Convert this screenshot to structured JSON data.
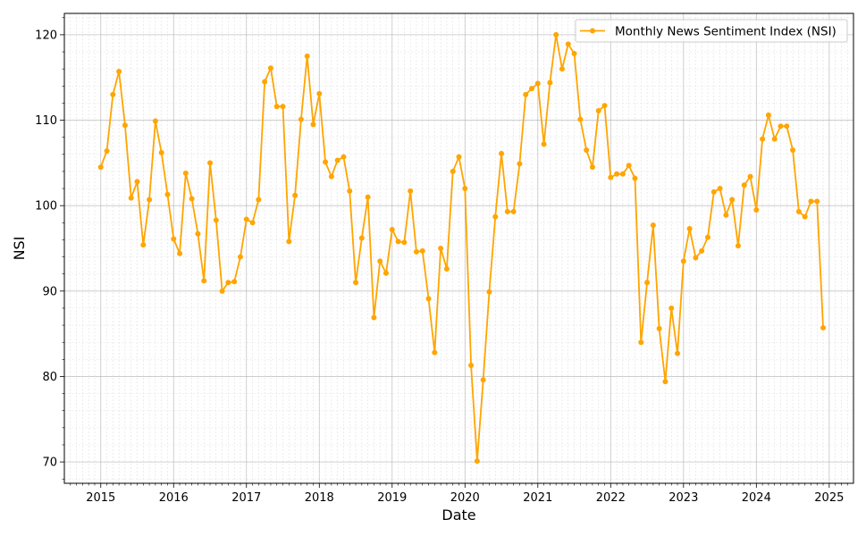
{
  "chart_data": {
    "type": "line",
    "title": "",
    "xlabel": "Date",
    "ylabel": "NSI",
    "xlim": [
      "2014-07",
      "2025-05"
    ],
    "ylim": [
      67.5,
      122.5
    ],
    "yticks": [
      70,
      80,
      90,
      100,
      110,
      120
    ],
    "xticks": [
      "2015",
      "2016",
      "2017",
      "2018",
      "2019",
      "2020",
      "2021",
      "2022",
      "2023",
      "2024",
      "2025"
    ],
    "grid": true,
    "minor_grid": true,
    "legend_position": "top-right",
    "color": "#FFA500",
    "series": [
      {
        "name": "Monthly News Sentiment Index (NSI)",
        "x": [
          "2015-01",
          "2015-02",
          "2015-03",
          "2015-04",
          "2015-05",
          "2015-06",
          "2015-07",
          "2015-08",
          "2015-09",
          "2015-10",
          "2015-11",
          "2015-12",
          "2016-01",
          "2016-02",
          "2016-03",
          "2016-04",
          "2016-05",
          "2016-06",
          "2016-07",
          "2016-08",
          "2016-09",
          "2016-10",
          "2016-11",
          "2016-12",
          "2017-01",
          "2017-02",
          "2017-03",
          "2017-04",
          "2017-05",
          "2017-06",
          "2017-07",
          "2017-08",
          "2017-09",
          "2017-10",
          "2017-11",
          "2017-12",
          "2018-01",
          "2018-02",
          "2018-03",
          "2018-04",
          "2018-05",
          "2018-06",
          "2018-07",
          "2018-08",
          "2018-09",
          "2018-10",
          "2018-11",
          "2018-12",
          "2019-01",
          "2019-02",
          "2019-03",
          "2019-04",
          "2019-05",
          "2019-06",
          "2019-07",
          "2019-08",
          "2019-09",
          "2019-10",
          "2019-11",
          "2019-12",
          "2020-01",
          "2020-02",
          "2020-03",
          "2020-04",
          "2020-05",
          "2020-06",
          "2020-07",
          "2020-08",
          "2020-09",
          "2020-10",
          "2020-11",
          "2020-12",
          "2021-01",
          "2021-02",
          "2021-03",
          "2021-04",
          "2021-05",
          "2021-06",
          "2021-07",
          "2021-08",
          "2021-09",
          "2021-10",
          "2021-11",
          "2021-12",
          "2022-01",
          "2022-02",
          "2022-03",
          "2022-04",
          "2022-05",
          "2022-06",
          "2022-07",
          "2022-08",
          "2022-09",
          "2022-10",
          "2022-11",
          "2022-12",
          "2023-01",
          "2023-02",
          "2023-03",
          "2023-04",
          "2023-05",
          "2023-06",
          "2023-07",
          "2023-08",
          "2023-09",
          "2023-10",
          "2023-11",
          "2023-12",
          "2024-01",
          "2024-02",
          "2024-03",
          "2024-04",
          "2024-05",
          "2024-06",
          "2024-07",
          "2024-08",
          "2024-09",
          "2024-10",
          "2024-11",
          "2024-12"
        ],
        "y": [
          104.5,
          106.4,
          113.0,
          115.7,
          109.4,
          100.9,
          102.8,
          95.4,
          100.7,
          109.9,
          106.2,
          101.3,
          96.1,
          94.4,
          103.8,
          100.8,
          96.7,
          91.2,
          105.0,
          98.3,
          90.0,
          91.0,
          91.1,
          94.0,
          98.4,
          98.0,
          100.7,
          114.5,
          116.1,
          111.6,
          111.6,
          95.8,
          101.2,
          110.1,
          117.5,
          109.5,
          113.1,
          105.1,
          103.4,
          105.3,
          105.7,
          101.7,
          91.0,
          96.2,
          101.0,
          86.9,
          93.5,
          92.1,
          97.2,
          95.8,
          95.7,
          101.7,
          94.6,
          94.7,
          89.1,
          82.8,
          95.0,
          92.6,
          104.0,
          105.7,
          102.0,
          81.3,
          70.1,
          79.6,
          89.9,
          98.7,
          106.1,
          99.3,
          99.3,
          104.9,
          113.0,
          113.7,
          114.3,
          107.2,
          114.4,
          120.0,
          116.0,
          118.9,
          117.8,
          110.1,
          106.5,
          104.5,
          111.1,
          111.7,
          103.3,
          103.7,
          103.7,
          104.7,
          103.2,
          84.0,
          91.0,
          97.7,
          85.6,
          79.4,
          88.0,
          82.7,
          93.5,
          97.3,
          93.9,
          94.7,
          96.3,
          101.6,
          102.0,
          98.9,
          100.7,
          95.3,
          102.4,
          103.4,
          99.5,
          107.8,
          110.6,
          107.8,
          109.3,
          109.3,
          106.5,
          99.3,
          98.7,
          100.5,
          100.5,
          85.7
        ]
      }
    ]
  }
}
